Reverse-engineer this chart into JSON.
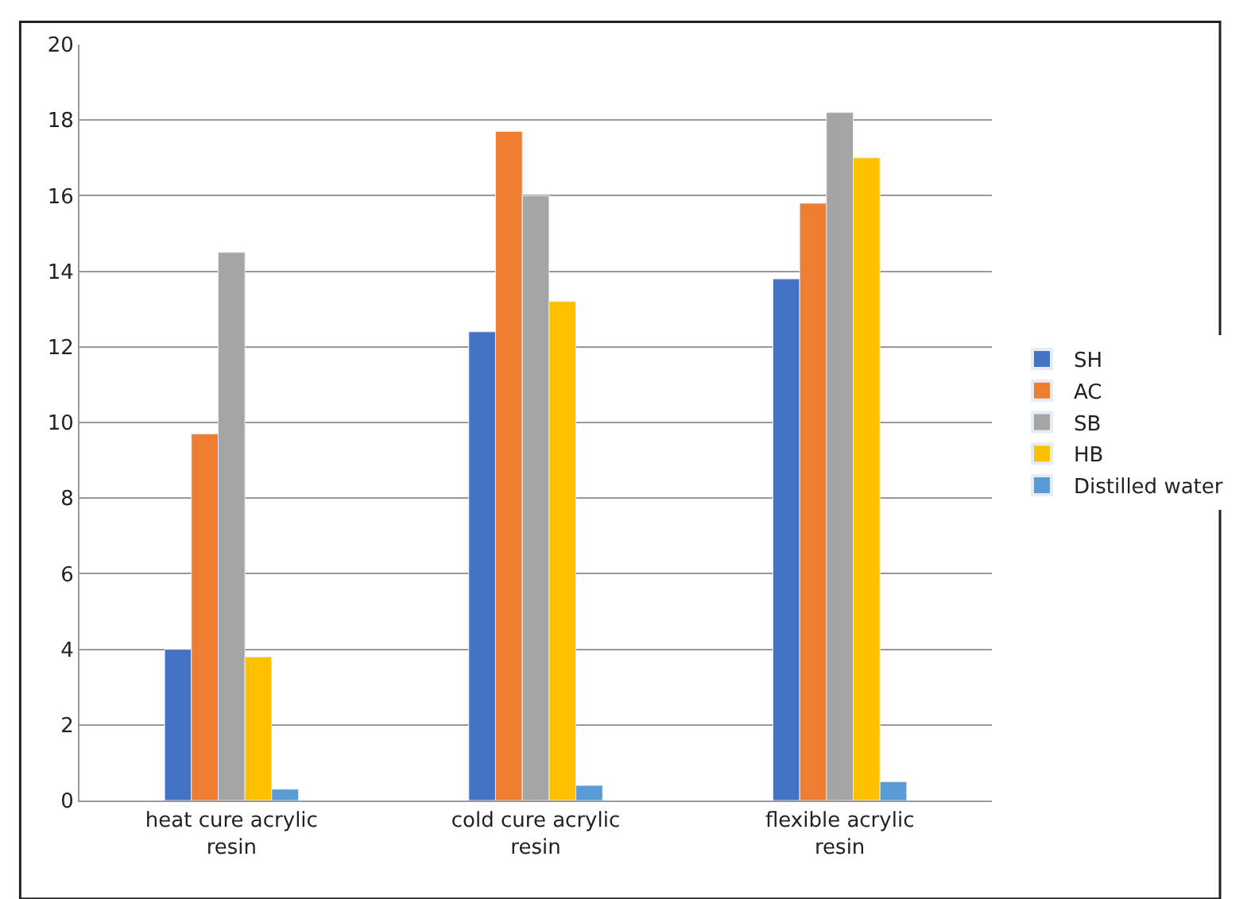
{
  "chart_data": {
    "type": "bar",
    "categories": [
      "heat cure acrylic resin",
      "cold cure acrylic resin",
      "flexible acrylic resin"
    ],
    "series": [
      {
        "name": "SH",
        "color": "#4472c4",
        "values": [
          4.0,
          12.4,
          13.8
        ]
      },
      {
        "name": "AC",
        "color": "#ed7d31",
        "values": [
          9.7,
          17.7,
          15.8
        ]
      },
      {
        "name": "SB",
        "color": "#a5a5a5",
        "values": [
          14.5,
          16.0,
          18.2
        ]
      },
      {
        "name": "HB",
        "color": "#ffc000",
        "values": [
          3.8,
          13.2,
          17.0
        ]
      },
      {
        "name": "Distilled water",
        "color": "#5b9bd5",
        "values": [
          0.3,
          0.4,
          0.5
        ]
      }
    ],
    "ylim": [
      0,
      20
    ],
    "yticks": [
      0,
      2,
      4,
      6,
      8,
      10,
      12,
      14,
      16,
      18,
      20
    ],
    "grid": "y",
    "legend": "right"
  }
}
